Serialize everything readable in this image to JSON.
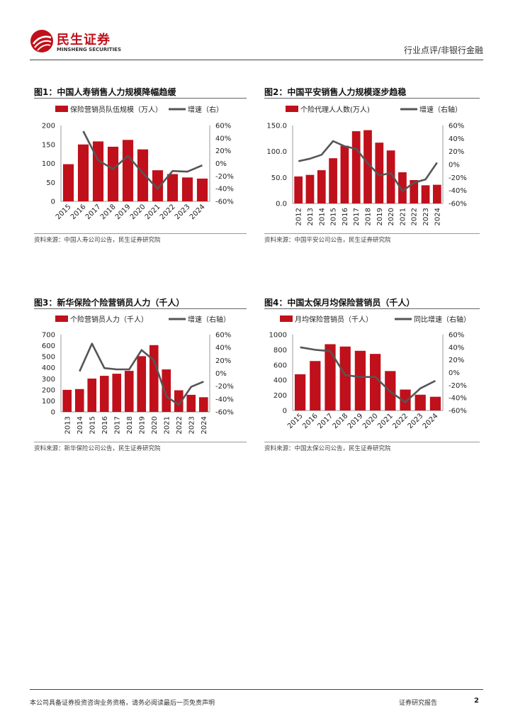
{
  "header": {
    "company_name": "民生证券",
    "company_name_en": "MINSHENG SECURITIES",
    "report_type": "行业点评/非银行金融",
    "brand_color": "#c0101b"
  },
  "footer": {
    "disclaimer": "本公司具备证券投资咨询业务资格，请务必阅读最后一页免责声明",
    "report_label": "证券研究报告",
    "page_number": "2"
  },
  "charts": [
    {
      "title": "图1：中国人寿销售人力规模降幅趋缓",
      "source": "资料来源：中国人寿公司公告，民生证券研究院"
    },
    {
      "title": "图2：中国平安销售人力规模逐步趋稳",
      "source": "资料来源：中国平安公司公告，民生证券研究院"
    },
    {
      "title": "图3：新华保险个险营销员人力（千人）",
      "source": "资料来源：新华保险公司公告，民生证券研究院"
    },
    {
      "title": "图4：中国太保月均保险营销员（千人）",
      "source": "资料来源：中国太保公司公告，民生证券研究院"
    }
  ],
  "chart_data": [
    {
      "type": "bar",
      "title": "图1：中国人寿销售人力规模降幅趋缓",
      "categories": [
        "2015",
        "2016",
        "2017",
        "2018",
        "2019",
        "2020",
        "2021",
        "2022",
        "2023",
        "2024"
      ],
      "series": [
        {
          "name": "保险营销员队伍规模（万人）",
          "type": "bar",
          "axis": "left",
          "color": "#c0101b",
          "values": [
            98,
            150,
            158,
            144,
            162,
            137,
            82,
            72,
            63,
            60
          ]
        },
        {
          "name": "增速（右）",
          "type": "line",
          "axis": "right",
          "color": "#555555",
          "values": [
            null,
            51,
            5,
            -9,
            12,
            -15,
            -40,
            -12,
            -13,
            -3
          ]
        }
      ],
      "left_ticks": [
        "0",
        "50",
        "100",
        "150",
        "200"
      ],
      "ylim": [
        0,
        200
      ],
      "right_ticks": [
        "-60%",
        "-40%",
        "-20%",
        "0%",
        "20%",
        "40%",
        "60%"
      ],
      "y2lim": [
        -60,
        60
      ],
      "xlabel_rotation": -45,
      "legend_position": "top"
    },
    {
      "type": "bar",
      "title": "图2：中国平安销售人力规模逐步趋稳",
      "categories": [
        "2012",
        "2013",
        "2014",
        "2015",
        "2016",
        "2017",
        "2018",
        "2019",
        "2020",
        "2021",
        "2022",
        "2023",
        "2024"
      ],
      "series": [
        {
          "name": "个险代理人人数(万人)",
          "type": "bar",
          "axis": "left",
          "color": "#c0101b",
          "values": [
            52,
            55,
            64,
            87,
            111,
            139,
            141,
            117,
            102,
            60,
            45,
            35,
            36
          ]
        },
        {
          "name": "增速（右轴）",
          "type": "line",
          "axis": "right",
          "color": "#555555",
          "values": [
            5,
            9,
            15,
            36,
            28,
            24,
            2,
            -17,
            -13,
            -41,
            -28,
            -23,
            3
          ]
        }
      ],
      "left_ticks": [
        "0.0",
        "50.0",
        "100.0",
        "150.0"
      ],
      "ylim": [
        0,
        150
      ],
      "right_ticks": [
        "-60%",
        "-40%",
        "-20%",
        "0%",
        "20%",
        "40%",
        "60%"
      ],
      "y2lim": [
        -60,
        60
      ],
      "xlabel_rotation": -90,
      "legend_position": "top"
    },
    {
      "type": "bar",
      "title": "图3：新华保险个险营销员人力（千人）",
      "categories": [
        "2013",
        "2014",
        "2015",
        "2016",
        "2017",
        "2018",
        "2019",
        "2020",
        "2021",
        "2022",
        "2023",
        "2024"
      ],
      "series": [
        {
          "name": "个险营销员人力（千人）",
          "type": "bar",
          "axis": "left",
          "color": "#c0101b",
          "values": [
            200,
            207,
            302,
            327,
            346,
            372,
            505,
            605,
            385,
            196,
            155,
            133
          ]
        },
        {
          "name": "增速（右轴）",
          "type": "line",
          "axis": "right",
          "color": "#555555",
          "values": [
            null,
            3,
            46,
            8,
            6,
            6,
            36,
            20,
            -36,
            -49,
            -21,
            -13
          ]
        }
      ],
      "left_ticks": [
        "0",
        "100",
        "200",
        "300",
        "400",
        "500",
        "600",
        "700"
      ],
      "ylim": [
        0,
        700
      ],
      "right_ticks": [
        "-60%",
        "-40%",
        "-20%",
        "0%",
        "20%",
        "40%",
        "60%"
      ],
      "y2lim": [
        -60,
        60
      ],
      "xlabel_rotation": -90,
      "legend_position": "top"
    },
    {
      "type": "bar",
      "title": "图4：中国太保月均保险营销员（千人）",
      "categories": [
        "2015",
        "2016",
        "2017",
        "2018",
        "2019",
        "2020",
        "2021",
        "2022",
        "2023",
        "2024"
      ],
      "series": [
        {
          "name": "月均保险营销员（千人）",
          "type": "bar",
          "axis": "left",
          "color": "#c0101b",
          "values": [
            478,
            652,
            874,
            843,
            787,
            746,
            520,
            276,
            208,
            181
          ]
        },
        {
          "name": "同比增速（右轴）",
          "type": "line",
          "axis": "right",
          "color": "#555555",
          "values": [
            40,
            36,
            34,
            -4,
            -7,
            -7,
            -30,
            -47,
            -25,
            -13
          ]
        }
      ],
      "left_ticks": [
        "0",
        "200",
        "400",
        "600",
        "800",
        "1000"
      ],
      "ylim": [
        0,
        1000
      ],
      "right_ticks": [
        "-60%",
        "-40%",
        "-20%",
        "0%",
        "20%",
        "40%",
        "60%"
      ],
      "y2lim": [
        -60,
        60
      ],
      "xlabel_rotation": -45,
      "legend_position": "top"
    }
  ]
}
